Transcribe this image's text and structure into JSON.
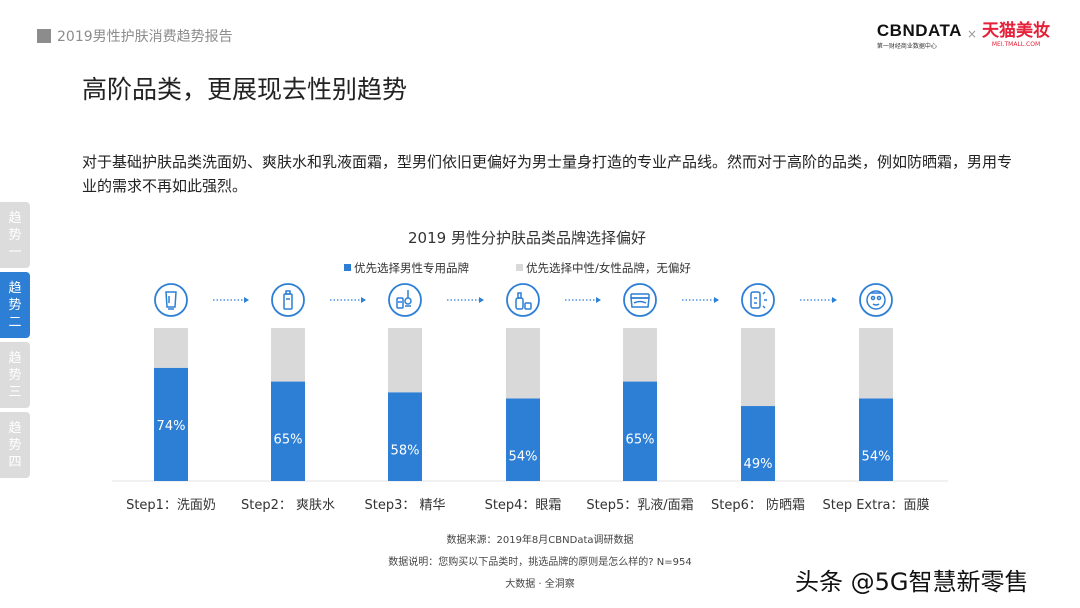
{
  "header": {
    "report_label": "2019男性护肤消费趋势报告",
    "brand_cbn": "CBNDATA",
    "brand_cbn_sub": "第一财经商业数据中心",
    "brand_x": "×",
    "brand_tmall": "天猫美妆",
    "brand_tmall_sub": "MEI.TMALL.COM"
  },
  "page_title": "高阶品类，更展现去性别趋势",
  "description": "对于基础护肤品类洗面奶、爽肤水和乳液面霜，型男们依旧更偏好为男士量身打造的专业产品线。然而对于高阶的品类，例如防晒霜，男用专业的需求不再如此强烈。",
  "side_tabs": [
    {
      "label": "趋势一",
      "active": false
    },
    {
      "label": "趋势二",
      "active": true
    },
    {
      "label": "趋势三",
      "active": false
    },
    {
      "label": "趋势四",
      "active": false
    }
  ],
  "chart_data": {
    "type": "bar",
    "stacked": true,
    "title": "2019 男性分护肤品类品牌选择偏好",
    "categories": [
      "Step1：洗面奶",
      "Step2： 爽肤水",
      "Step3： 精华",
      "Step4：眼霜",
      "Step5：乳液/面霜",
      "Step6： 防晒霜",
      "Step Extra：面膜"
    ],
    "category_icons": [
      "cleanser-tube-icon",
      "toner-bottle-icon",
      "serum-dropper-icon",
      "eye-cream-icon",
      "cream-jar-icon",
      "sunscreen-icon",
      "face-mask-icon"
    ],
    "series": [
      {
        "name": "优先选择男性专用品牌",
        "values": [
          74,
          65,
          58,
          54,
          65,
          49,
          54
        ],
        "labels": [
          "74%",
          "65%",
          "58%",
          "54%",
          "65%",
          "49%",
          "54%"
        ],
        "color": "#2d7fd6"
      },
      {
        "name": "优先选择中性/女性品牌，无偏好",
        "values": [
          26,
          35,
          42,
          46,
          35,
          51,
          46
        ],
        "color": "#d9d9d9"
      }
    ],
    "ylim": [
      0,
      100
    ],
    "grid": false,
    "legend_position": "top-center",
    "icon_color": "#2d7fd6"
  },
  "footnotes": {
    "source": "数据来源：2019年8月CBNData调研数据",
    "note": "数据说明：您购买以下品类时，挑选品牌的原则是怎么样的? N=954",
    "tagline": "大数据 · 全洞察"
  },
  "watermark": "头条 @5G智慧新零售"
}
